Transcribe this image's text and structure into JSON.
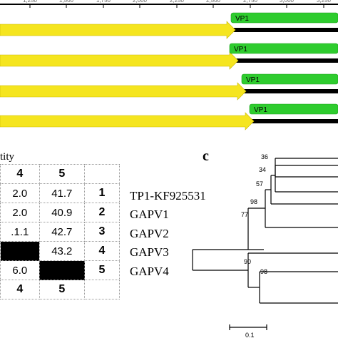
{
  "genome_map": {
    "ruler_ticks": [
      "1,250",
      "1,500",
      "1,750",
      "2,000",
      "2,250",
      "2,500",
      "2,750",
      "3,000",
      "3,250"
    ],
    "tracks": [
      {
        "feature_label": "VP1"
      },
      {
        "feature_label": "VP1"
      },
      {
        "feature_label": "VP1"
      },
      {
        "feature_label": "VP1"
      }
    ],
    "colors": {
      "orf_arrow": "#f5e51f",
      "vp1": "#2ecc2e",
      "genome_line": "#000000"
    }
  },
  "identity_table": {
    "title": "tity",
    "header": [
      "4",
      "5",
      ""
    ],
    "rows": [
      {
        "cells": [
          "2.0",
          "41.7"
        ],
        "index": "1",
        "name": "TP1-KF925531"
      },
      {
        "cells": [
          "2.0",
          "40.9"
        ],
        "index": "2",
        "name": "GAPV1"
      },
      {
        "cells": ".1.1|42.7",
        "index": "3",
        "name": "GAPV2"
      },
      {
        "cells": [
          "",
          "43.2"
        ],
        "index": "4",
        "name": "GAPV3"
      },
      {
        "cells": [
          "6.0",
          ""
        ],
        "index": "5",
        "name": "GAPV4"
      }
    ],
    "footer": [
      "4",
      "5",
      ""
    ]
  },
  "tree": {
    "panel_label": "c",
    "bootstrap": [
      "36",
      "34",
      "57",
      "98",
      "77",
      "90",
      "98"
    ],
    "scale_bar_label": "0.1"
  }
}
